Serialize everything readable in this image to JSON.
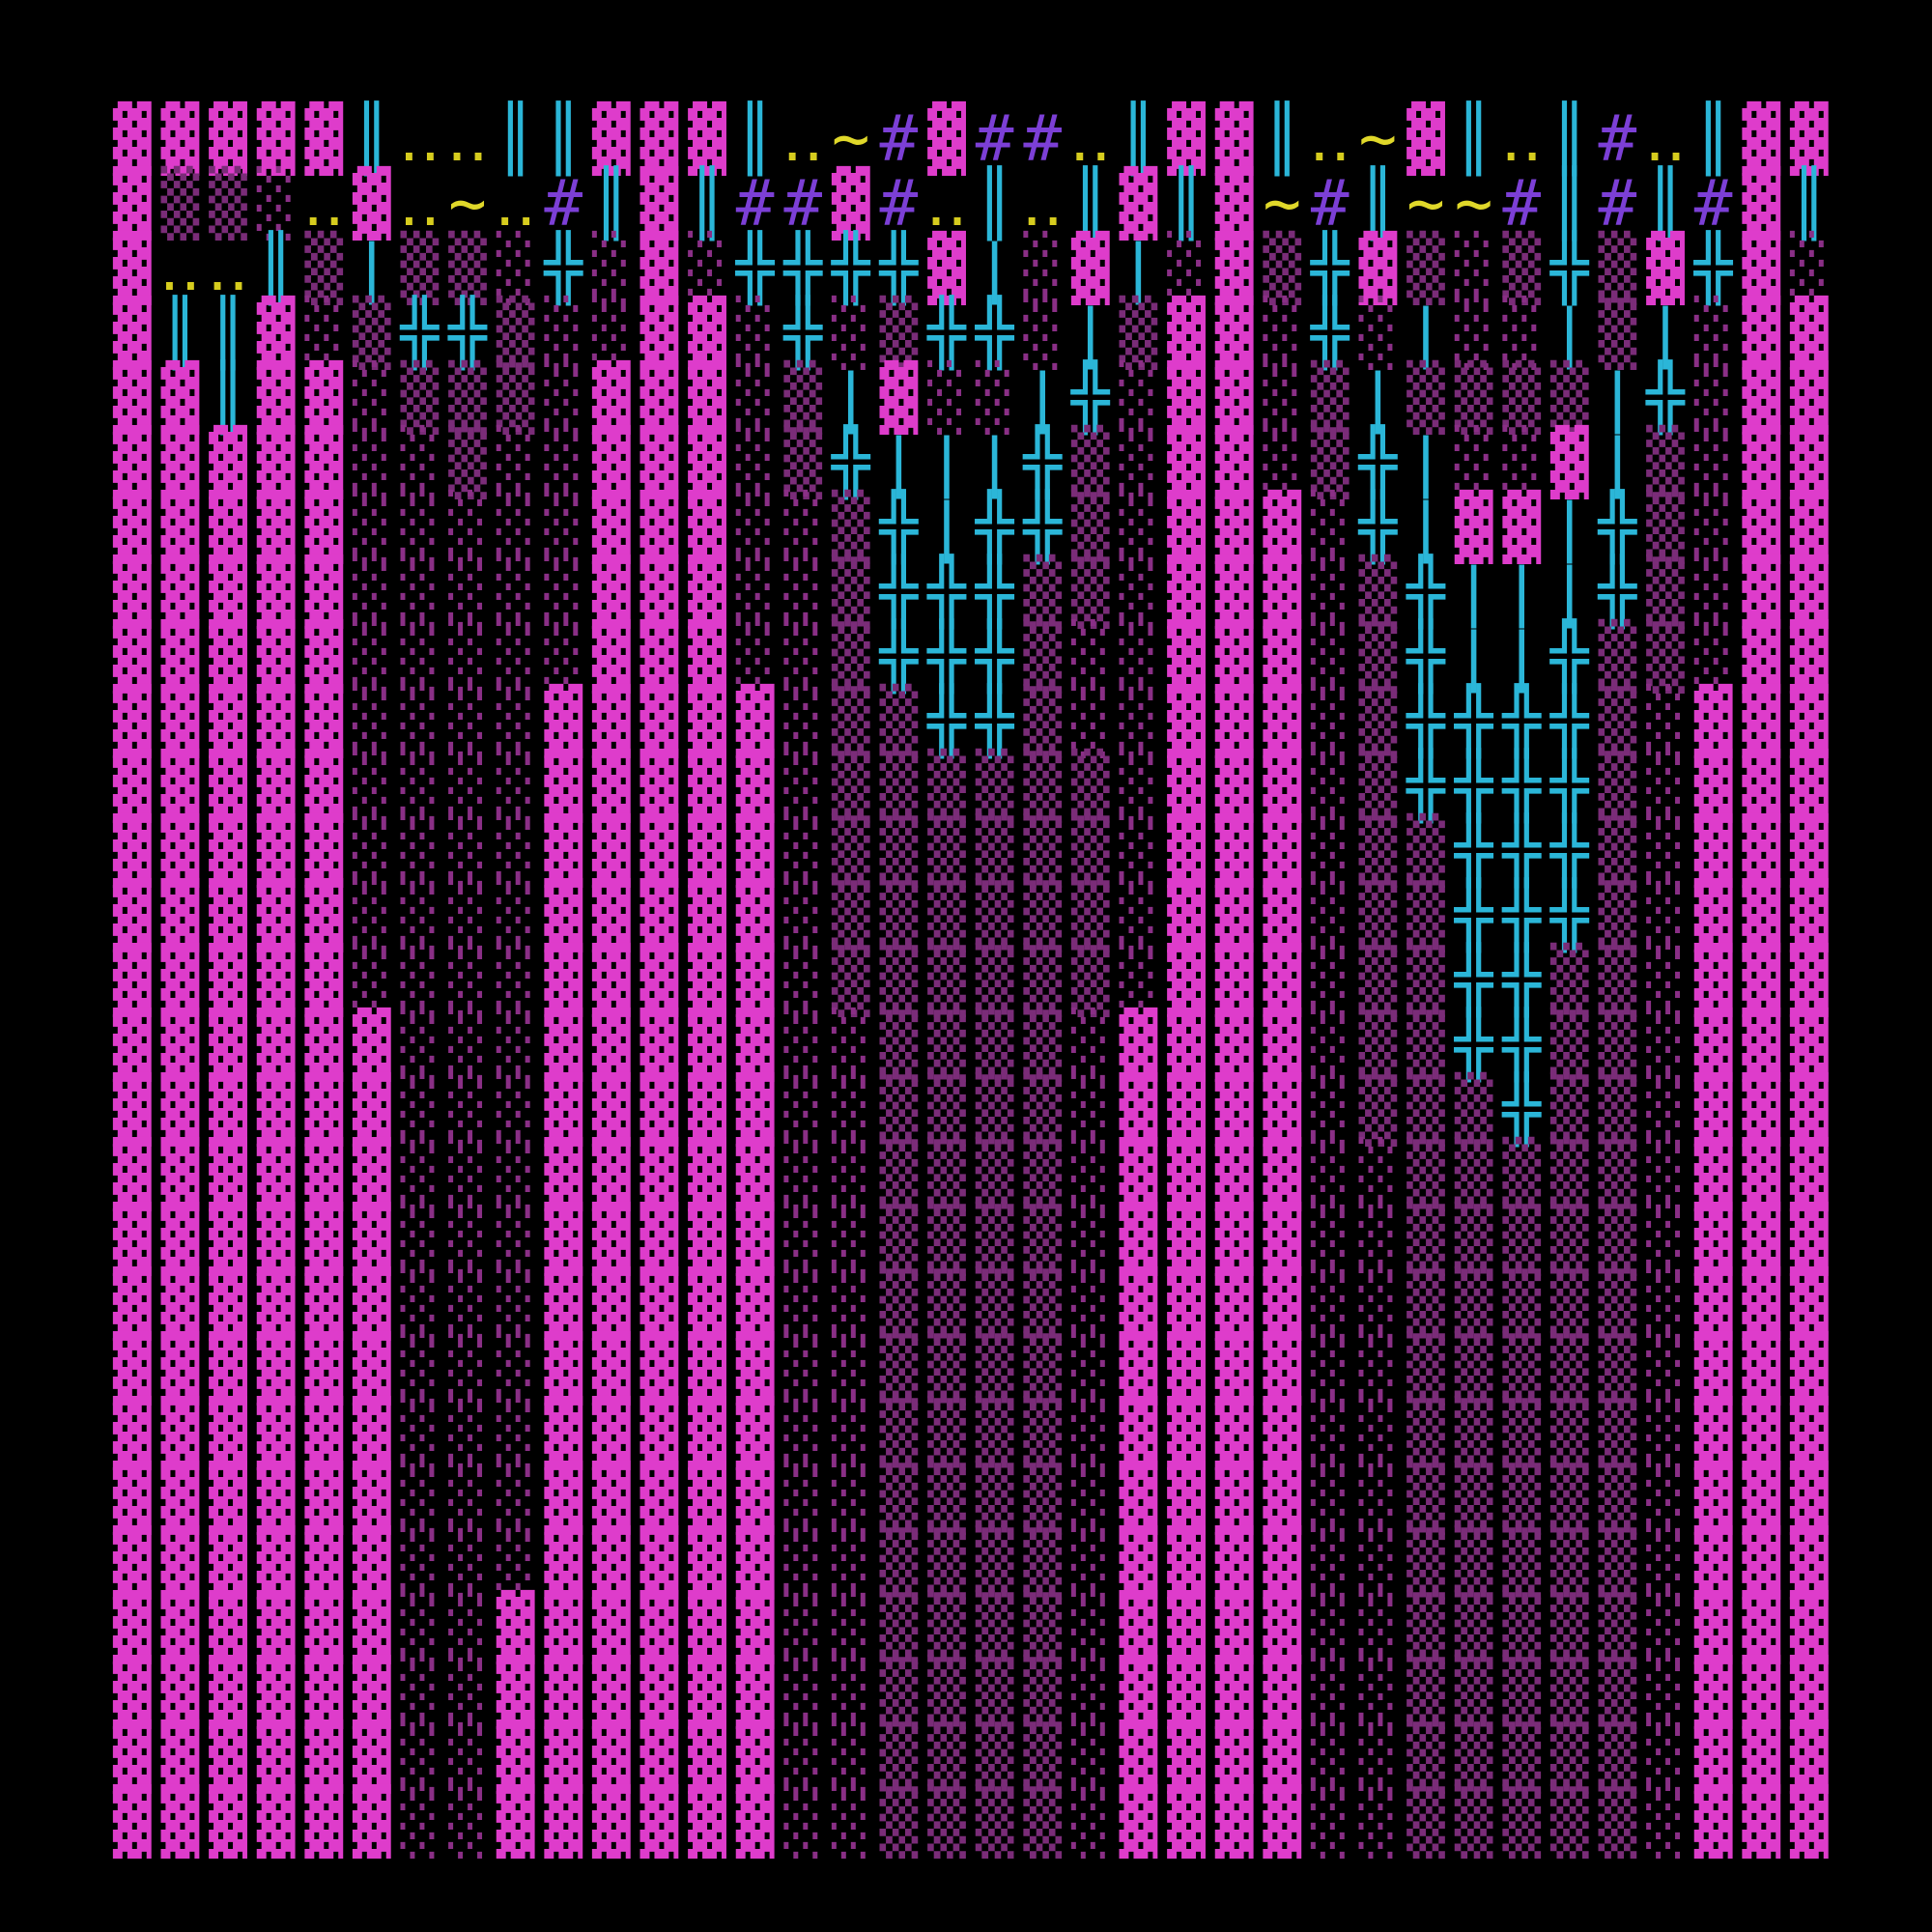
{
  "map": {
    "palette": {
      "▓": "#de3ccb",
      "▒": "#7a2c78",
      "░": "#8a2f86",
      "╬": "#2bb6d8",
      "║": "#2bb6d8",
      "|": "#2bb6d8",
      "‥": "#d6cc1e",
      "~": "#e0d82a",
      "#": "#7c3fd6"
    },
    "rows": [
      [
        "▓",
        "▓",
        "▓",
        "▓",
        "▓",
        "║",
        "‥",
        "‥",
        "║",
        "║",
        "▓",
        "▓",
        "▓",
        "║",
        "‥",
        "~",
        "#",
        "▓",
        "#",
        "#",
        "‥",
        "║",
        "▓",
        "▓",
        "║",
        "‥",
        "~",
        "▓",
        "║",
        "‥",
        "║",
        "#",
        "‥",
        "║",
        "▓",
        "▓"
      ],
      [
        "▓",
        "▒",
        "▒",
        "░",
        "‥",
        "▓",
        "‥",
        "~",
        "‥",
        "#",
        "║",
        "▓",
        "║",
        "#",
        "#",
        "▓",
        "#",
        "‥",
        "║",
        "‥",
        "║",
        "▓",
        "║",
        "▓",
        "~",
        "#",
        "║",
        "~",
        "~",
        "#",
        "║",
        "#",
        "║",
        "#",
        "▓",
        "║"
      ],
      [
        "▓",
        "‥",
        "‥",
        "║",
        "▒",
        "|",
        "▒",
        "▒",
        "░",
        "╬",
        "░",
        "▓",
        "░",
        "╬",
        "╬",
        "╬",
        "╬",
        "▓",
        "|",
        "░",
        "▓",
        "|",
        "░",
        "▓",
        "▒",
        "╬",
        "▓",
        "▒",
        "░",
        "▒",
        "╬",
        "▒",
        "▓",
        "╬",
        "▓",
        "░"
      ],
      [
        "▓",
        "║",
        "║",
        "▓",
        "░",
        "▒",
        "╬",
        "╬",
        "▒",
        "░",
        "░",
        "▓",
        "▓",
        "░",
        "╬",
        "░",
        "▒",
        "╬",
        "╬",
        "░",
        "|",
        "▒",
        "▓",
        "▓",
        "░",
        "╬",
        "░",
        "|",
        "░",
        "░",
        "|",
        "▒",
        "|",
        "░",
        "▓",
        "▓"
      ],
      [
        "▓",
        "▓",
        "║",
        "▓",
        "▓",
        "░",
        "▒",
        "▒",
        "▒",
        "░",
        "▓",
        "▓",
        "▓",
        "░",
        "▒",
        "|",
        "▓",
        "░",
        "░",
        "|",
        "╬",
        "░",
        "▓",
        "▓",
        "░",
        "▒",
        "|",
        "▒",
        "▒",
        "▒",
        "▒",
        "|",
        "╬",
        "░",
        "▓",
        "▓"
      ],
      [
        "▓",
        "▓",
        "▓",
        "▓",
        "▓",
        "░",
        "░",
        "▒",
        "░",
        "░",
        "▓",
        "▓",
        "▓",
        "░",
        "▒",
        "╬",
        "|",
        "|",
        "|",
        "╬",
        "▒",
        "░",
        "▓",
        "▓",
        "░",
        "▒",
        "╬",
        "|",
        "░",
        "░",
        "▓",
        "|",
        "▒",
        "░",
        "▓",
        "▓"
      ],
      [
        "▓",
        "▓",
        "▓",
        "▓",
        "▓",
        "░",
        "░",
        "░",
        "░",
        "░",
        "▓",
        "▓",
        "▓",
        "░",
        "░",
        "▒",
        "╬",
        "|",
        "╬",
        "╬",
        "▒",
        "░",
        "▓",
        "▓",
        "▓",
        "░",
        "╬",
        "|",
        "▓",
        "▓",
        "|",
        "╬",
        "▒",
        "░",
        "▓",
        "▓"
      ],
      [
        "▓",
        "▓",
        "▓",
        "▓",
        "▓",
        "░",
        "░",
        "░",
        "░",
        "░",
        "▓",
        "▓",
        "▓",
        "░",
        "░",
        "▒",
        "╬",
        "╬",
        "╬",
        "▒",
        "▒",
        "░",
        "▓",
        "▓",
        "▓",
        "░",
        "▒",
        "╬",
        "|",
        "|",
        "|",
        "╬",
        "▒",
        "░",
        "▓",
        "▓"
      ],
      [
        "▓",
        "▓",
        "▓",
        "▓",
        "▓",
        "░",
        "░",
        "░",
        "░",
        "░",
        "▓",
        "▓",
        "▓",
        "░",
        "░",
        "▒",
        "╬",
        "╬",
        "╬",
        "▒",
        "░",
        "░",
        "▓",
        "▓",
        "▓",
        "░",
        "▒",
        "╬",
        "|",
        "|",
        "╬",
        "▒",
        "▒",
        "░",
        "▓",
        "▓"
      ],
      [
        "▓",
        "▓",
        "▓",
        "▓",
        "▓",
        "░",
        "░",
        "░",
        "░",
        "▓",
        "▓",
        "▓",
        "▓",
        "▓",
        "░",
        "▒",
        "▒",
        "╬",
        "╬",
        "▒",
        "░",
        "░",
        "▓",
        "▓",
        "▓",
        "░",
        "▒",
        "╬",
        "╬",
        "╬",
        "╬",
        "▒",
        "░",
        "▓",
        "▓",
        "▓"
      ],
      [
        "▓",
        "▓",
        "▓",
        "▓",
        "▓",
        "░",
        "░",
        "░",
        "░",
        "▓",
        "▓",
        "▓",
        "▓",
        "▓",
        "░",
        "▒",
        "▒",
        "▒",
        "▒",
        "▒",
        "▒",
        "░",
        "▓",
        "▓",
        "▓",
        "░",
        "▒",
        "╬",
        "╬",
        "╬",
        "╬",
        "▒",
        "░",
        "▓",
        "▓",
        "▓"
      ],
      [
        "▓",
        "▓",
        "▓",
        "▓",
        "▓",
        "░",
        "░",
        "░",
        "░",
        "▓",
        "▓",
        "▓",
        "▓",
        "▓",
        "░",
        "▒",
        "▒",
        "▒",
        "▒",
        "▒",
        "▒",
        "░",
        "▓",
        "▓",
        "▓",
        "░",
        "▒",
        "▒",
        "╬",
        "╬",
        "╬",
        "▒",
        "░",
        "▓",
        "▓",
        "▓"
      ],
      [
        "▓",
        "▓",
        "▓",
        "▓",
        "▓",
        "░",
        "░",
        "░",
        "░",
        "▓",
        "▓",
        "▓",
        "▓",
        "▓",
        "░",
        "▒",
        "▒",
        "▒",
        "▒",
        "▒",
        "▒",
        "░",
        "▓",
        "▓",
        "▓",
        "░",
        "▒",
        "▒",
        "╬",
        "╬",
        "╬",
        "▒",
        "░",
        "▓",
        "▓",
        "▓"
      ],
      [
        "▓",
        "▓",
        "▓",
        "▓",
        "▓",
        "░",
        "░",
        "░",
        "░",
        "▓",
        "▓",
        "▓",
        "▓",
        "▓",
        "░",
        "▒",
        "▒",
        "▒",
        "▒",
        "▒",
        "▒",
        "░",
        "▓",
        "▓",
        "▓",
        "░",
        "▒",
        "▒",
        "╬",
        "╬",
        "▒",
        "▒",
        "░",
        "▓",
        "▓",
        "▓"
      ],
      [
        "▓",
        "▓",
        "▓",
        "▓",
        "▓",
        "▓",
        "░",
        "░",
        "░",
        "▓",
        "▓",
        "▓",
        "▓",
        "▓",
        "░",
        "░",
        "▒",
        "▒",
        "▒",
        "▒",
        "░",
        "▓",
        "▓",
        "▓",
        "▓",
        "░",
        "▒",
        "▒",
        "╬",
        "╬",
        "▒",
        "▒",
        "░",
        "▓",
        "▓",
        "▓"
      ],
      [
        "▓",
        "▓",
        "▓",
        "▓",
        "▓",
        "▓",
        "░",
        "░",
        "░",
        "▓",
        "▓",
        "▓",
        "▓",
        "▓",
        "░",
        "░",
        "▒",
        "▒",
        "▒",
        "▒",
        "░",
        "▓",
        "▓",
        "▓",
        "▓",
        "░",
        "▒",
        "▒",
        "▒",
        "╬",
        "▒",
        "▒",
        "░",
        "▓",
        "▓",
        "▓"
      ],
      [
        "▓",
        "▓",
        "▓",
        "▓",
        "▓",
        "▓",
        "░",
        "░",
        "░",
        "▓",
        "▓",
        "▓",
        "▓",
        "▓",
        "░",
        "░",
        "▒",
        "▒",
        "▒",
        "▒",
        "░",
        "▓",
        "▓",
        "▓",
        "▓",
        "░",
        "░",
        "▒",
        "▒",
        "▒",
        "▒",
        "▒",
        "░",
        "▓",
        "▓",
        "▓"
      ],
      [
        "▓",
        "▓",
        "▓",
        "▓",
        "▓",
        "▓",
        "░",
        "░",
        "░",
        "▓",
        "▓",
        "▓",
        "▓",
        "▓",
        "░",
        "░",
        "▒",
        "▒",
        "▒",
        "▒",
        "░",
        "▓",
        "▓",
        "▓",
        "▓",
        "░",
        "░",
        "▒",
        "▒",
        "▒",
        "▒",
        "▒",
        "░",
        "▓",
        "▓",
        "▓"
      ],
      [
        "▓",
        "▓",
        "▓",
        "▓",
        "▓",
        "▓",
        "░",
        "░",
        "░",
        "▓",
        "▓",
        "▓",
        "▓",
        "▓",
        "░",
        "░",
        "▒",
        "▒",
        "▒",
        "▒",
        "░",
        "▓",
        "▓",
        "▓",
        "▓",
        "░",
        "░",
        "▒",
        "▒",
        "▒",
        "▒",
        "▒",
        "░",
        "▓",
        "▓",
        "▓"
      ],
      [
        "▓",
        "▓",
        "▓",
        "▓",
        "▓",
        "▓",
        "░",
        "░",
        "░",
        "▓",
        "▓",
        "▓",
        "▓",
        "▓",
        "░",
        "░",
        "▒",
        "▒",
        "▒",
        "▒",
        "░",
        "▓",
        "▓",
        "▓",
        "▓",
        "░",
        "░",
        "▒",
        "▒",
        "▒",
        "▒",
        "▒",
        "░",
        "▓",
        "▓",
        "▓"
      ],
      [
        "▓",
        "▓",
        "▓",
        "▓",
        "▓",
        "▓",
        "░",
        "░",
        "░",
        "▓",
        "▓",
        "▓",
        "▓",
        "▓",
        "░",
        "░",
        "▒",
        "▒",
        "▒",
        "▒",
        "░",
        "▓",
        "▓",
        "▓",
        "▓",
        "░",
        "░",
        "▒",
        "▒",
        "▒",
        "▒",
        "▒",
        "░",
        "▓",
        "▓",
        "▓"
      ],
      [
        "▓",
        "▓",
        "▓",
        "▓",
        "▓",
        "▓",
        "░",
        "░",
        "░",
        "▓",
        "▓",
        "▓",
        "▓",
        "▓",
        "░",
        "░",
        "▒",
        "▒",
        "▒",
        "▒",
        "░",
        "▓",
        "▓",
        "▓",
        "▓",
        "░",
        "░",
        "▒",
        "▒",
        "▒",
        "▒",
        "▒",
        "░",
        "▓",
        "▓",
        "▓"
      ],
      [
        "▓",
        "▓",
        "▓",
        "▓",
        "▓",
        "▓",
        "░",
        "░",
        "░",
        "▓",
        "▓",
        "▓",
        "▓",
        "▓",
        "░",
        "░",
        "▒",
        "▒",
        "▒",
        "▒",
        "░",
        "▓",
        "▓",
        "▓",
        "▓",
        "░",
        "░",
        "▒",
        "▒",
        "▒",
        "▒",
        "▒",
        "░",
        "▓",
        "▓",
        "▓"
      ],
      [
        "▓",
        "▓",
        "▓",
        "▓",
        "▓",
        "▓",
        "░",
        "░",
        "▓",
        "▓",
        "▓",
        "▓",
        "▓",
        "▓",
        "░",
        "░",
        "▒",
        "▒",
        "▒",
        "▒",
        "░",
        "▓",
        "▓",
        "▓",
        "▓",
        "░",
        "░",
        "▒",
        "▒",
        "▒",
        "▒",
        "▒",
        "░",
        "▓",
        "▓",
        "▓"
      ],
      [
        "▓",
        "▓",
        "▓",
        "▓",
        "▓",
        "▓",
        "░",
        "░",
        "▓",
        "▓",
        "▓",
        "▓",
        "▓",
        "▓",
        "░",
        "░",
        "▒",
        "▒",
        "▒",
        "▒",
        "░",
        "▓",
        "▓",
        "▓",
        "▓",
        "░",
        "░",
        "▒",
        "▒",
        "▒",
        "▒",
        "▒",
        "░",
        "▓",
        "▓",
        "▓"
      ],
      [
        "▓",
        "▓",
        "▓",
        "▓",
        "▓",
        "▓",
        "░",
        "░",
        "▓",
        "▓",
        "▓",
        "▓",
        "▓",
        "▓",
        "░",
        "░",
        "▒",
        "▒",
        "▒",
        "▒",
        "░",
        "▓",
        "▓",
        "▓",
        "▓",
        "░",
        "░",
        "▒",
        "▒",
        "▒",
        "▒",
        "▒",
        "░",
        "▓",
        "▓",
        "▓"
      ],
      [
        "▓",
        "▓",
        "▓",
        "▓",
        "▓",
        "▓",
        "░",
        "░",
        "▓",
        "▓",
        "▓",
        "▓",
        "▓",
        "▓",
        "░",
        "░",
        "▒",
        "▒",
        "▒",
        "▒",
        "░",
        "▓",
        "▓",
        "▓",
        "▓",
        "░",
        "░",
        "▒",
        "▒",
        "▒",
        "▒",
        "▒",
        "░",
        "▓",
        "▓",
        "▓"
      ]
    ]
  }
}
